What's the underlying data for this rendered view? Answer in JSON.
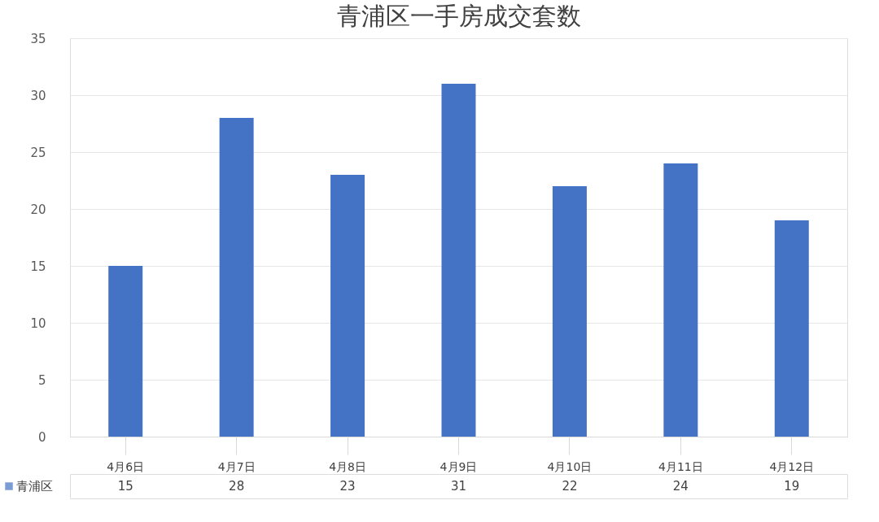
{
  "chart_data": {
    "type": "bar",
    "title": "青浦区一手房成交套数",
    "categories": [
      "4月6日",
      "4月7日",
      "4月8日",
      "4月9日",
      "4月10日",
      "4月11日",
      "4月12日"
    ],
    "series": [
      {
        "name": "青浦区",
        "color": "#4472c4",
        "values": [
          15,
          28,
          23,
          31,
          22,
          24,
          19
        ]
      }
    ],
    "ylim": [
      0,
      35
    ],
    "yticks": [
      0,
      5,
      10,
      15,
      20,
      25,
      30,
      35
    ],
    "grid": "y",
    "data_labels": true,
    "legend": "bottom"
  }
}
